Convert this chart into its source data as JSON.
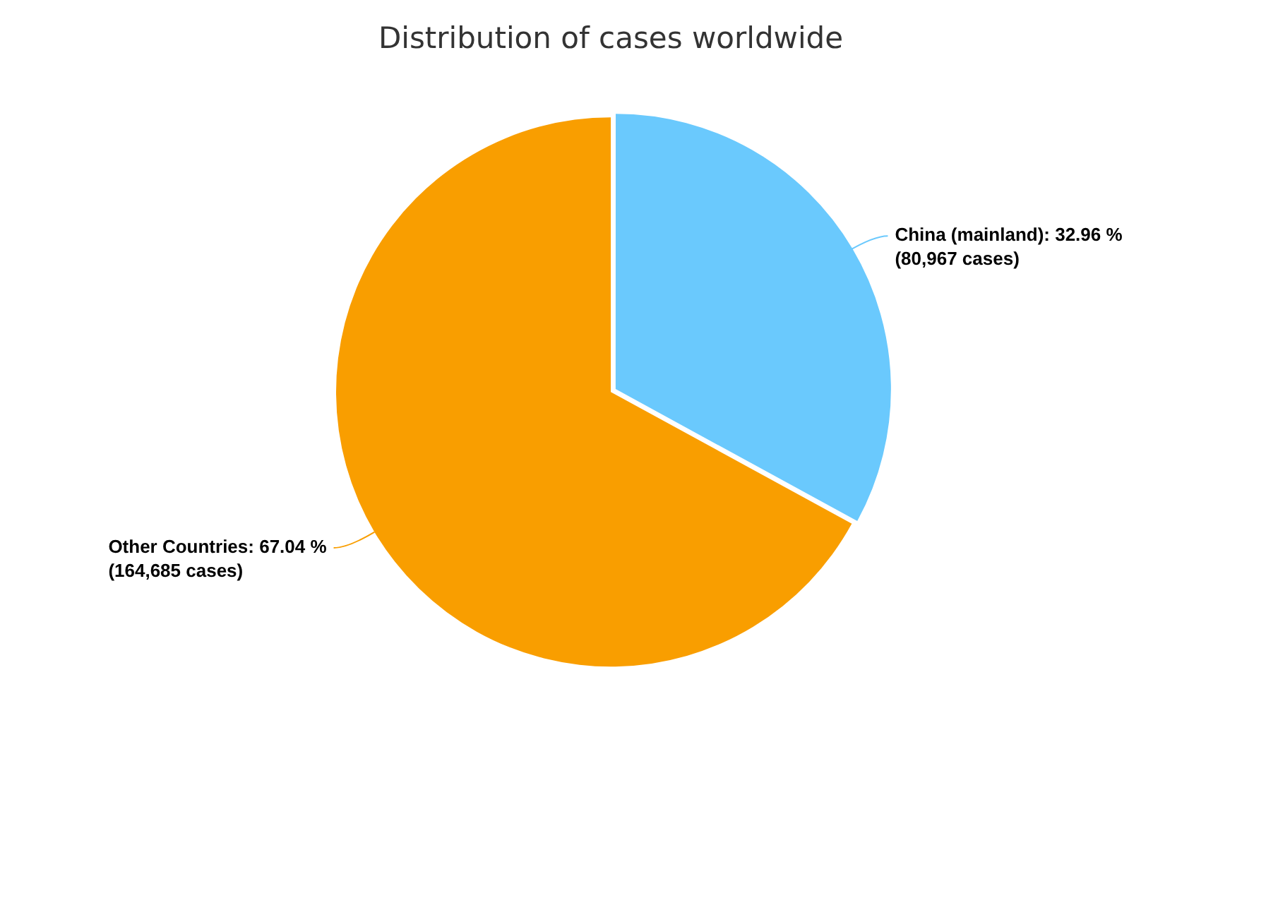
{
  "chart_data": {
    "type": "pie",
    "title": "Distribution of cases worldwide",
    "categories": [
      "China (mainland)",
      "Other Countries"
    ],
    "values": [
      80967,
      164685
    ],
    "colors": [
      "#6ac9fd",
      "#f99e00"
    ],
    "value_labels": [
      "32.96 %\n(80,967 cases)",
      "67.04 %\n(164,685 cases)"
    ]
  }
}
